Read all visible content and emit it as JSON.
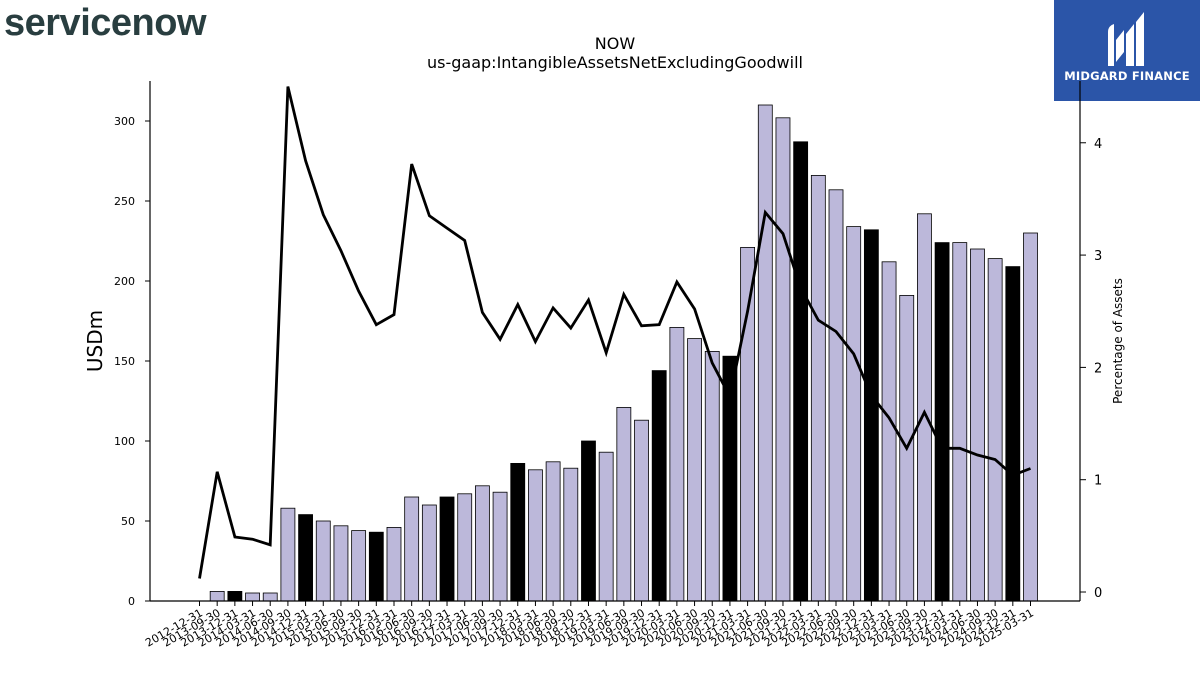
{
  "branding": {
    "company_logo_text": "servicenow",
    "publisher_name": "MIDGARD FINANCE"
  },
  "colors": {
    "bar_default": "#bcb8da",
    "bar_highlight": "#000000",
    "line": "#000000",
    "servicenow_dark": "#293e40",
    "servicenow_accent": "#81b5a1",
    "midgard_blue": "#2b55a8"
  },
  "chart_data": {
    "type": "bar",
    "title": "NOW",
    "subtitle": "us-gaap:IntangibleAssetsNetExcludingGoodwill",
    "ylabel": "USDm",
    "ylabel_right": "Percentage of Assets",
    "ylim": [
      0,
      325
    ],
    "ylim_right": [
      -0.08,
      4.55
    ],
    "yticks": [
      0,
      50,
      100,
      150,
      200,
      250,
      300
    ],
    "yticks_right": [
      0,
      1,
      2,
      3,
      4
    ],
    "grid": false,
    "categories": [
      "2012-12-31",
      "2013-09-30",
      "2013-12-31",
      "2014-03-31",
      "2014-06-30",
      "2014-09-30",
      "2014-12-31",
      "2015-03-31",
      "2015-06-30",
      "2015-09-30",
      "2015-12-31",
      "2016-03-31",
      "2016-06-30",
      "2016-09-30",
      "2016-12-31",
      "2017-03-31",
      "2017-06-30",
      "2017-09-30",
      "2017-12-31",
      "2018-03-31",
      "2018-06-30",
      "2018-09-30",
      "2018-12-31",
      "2019-03-31",
      "2019-06-30",
      "2019-09-30",
      "2019-12-31",
      "2020-03-31",
      "2020-06-30",
      "2020-09-30",
      "2020-12-31",
      "2021-03-31",
      "2021-06-30",
      "2021-09-30",
      "2021-12-31",
      "2022-03-31",
      "2022-06-30",
      "2022-09-30",
      "2022-12-31",
      "2023-03-31",
      "2023-06-30",
      "2023-09-30",
      "2023-12-31",
      "2024-03-31",
      "2024-06-30",
      "2024-09-30",
      "2024-12-31",
      "2025-03-31"
    ],
    "series": [
      {
        "kind": "bar",
        "axis": "left",
        "values": [
          0,
          6,
          6,
          5,
          5,
          58,
          54,
          50,
          47,
          44,
          43,
          46,
          65,
          60,
          65,
          67,
          72,
          68,
          86,
          82,
          87,
          83,
          100,
          93,
          121,
          113,
          144,
          171,
          164,
          156,
          153,
          221,
          310,
          302,
          287,
          266,
          257,
          234,
          232,
          212,
          191,
          242,
          224,
          224,
          220,
          214,
          209,
          230
        ],
        "highlight": [
          false,
          false,
          true,
          false,
          false,
          false,
          true,
          false,
          false,
          false,
          true,
          false,
          false,
          false,
          true,
          false,
          false,
          false,
          true,
          false,
          false,
          false,
          true,
          false,
          false,
          false,
          true,
          false,
          false,
          false,
          true,
          false,
          false,
          false,
          true,
          false,
          false,
          false,
          true,
          false,
          false,
          false,
          true,
          false,
          false,
          false,
          true,
          false
        ]
      },
      {
        "kind": "line",
        "axis": "right",
        "values": [
          0.12,
          1.07,
          0.49,
          0.47,
          0.42,
          4.5,
          3.84,
          3.36,
          3.04,
          2.68,
          2.38,
          2.47,
          3.81,
          3.35,
          3.24,
          3.13,
          2.49,
          2.25,
          2.56,
          2.23,
          2.53,
          2.35,
          2.6,
          2.13,
          2.65,
          2.37,
          2.38,
          2.76,
          2.52,
          2.04,
          1.74,
          2.5,
          3.38,
          3.19,
          2.71,
          2.42,
          2.32,
          2.12,
          1.75,
          1.55,
          1.28,
          1.6,
          1.28,
          1.28,
          1.22,
          1.18,
          1.04,
          1.1
        ]
      }
    ]
  }
}
